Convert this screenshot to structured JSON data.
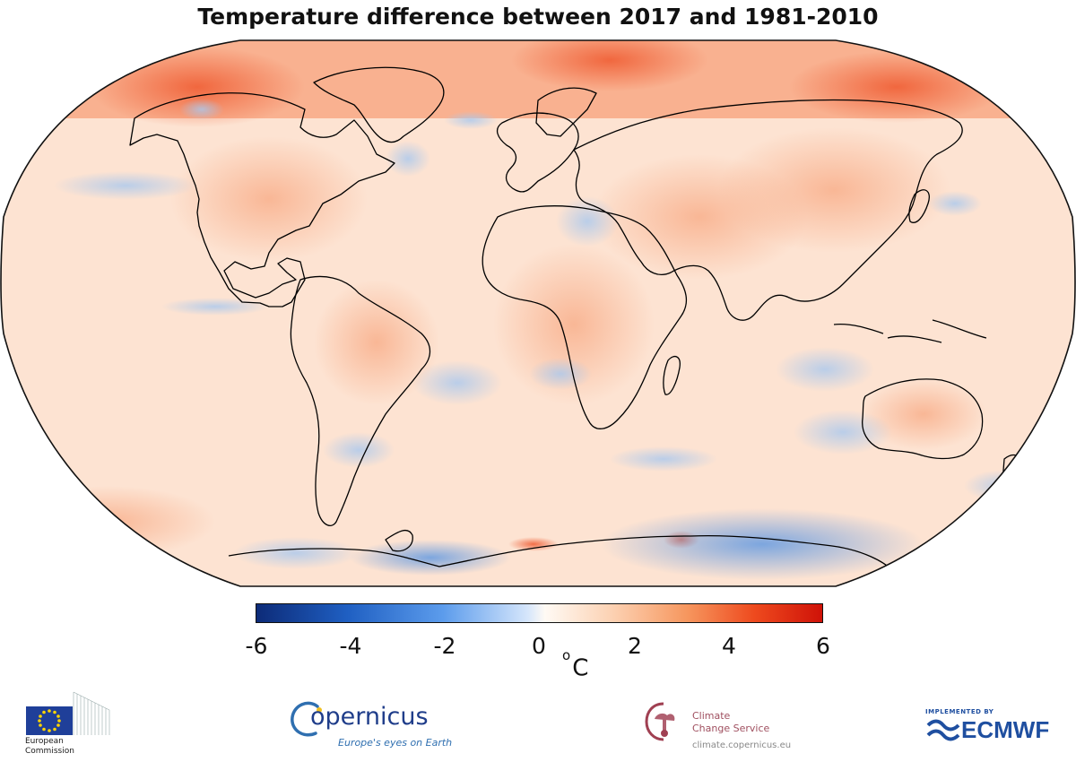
{
  "title": "Temperature difference between 2017 and 1981-2010",
  "colorbar": {
    "ticks": [
      "-6",
      "-4",
      "-2",
      "0",
      "2",
      "4",
      "6"
    ],
    "unit_superscript": "o",
    "unit": "C",
    "range": [
      -6,
      6
    ]
  },
  "logos": {
    "ec": {
      "line1": "European",
      "line2": "Commission"
    },
    "copernicus": {
      "name": "opernicus",
      "tagline": "Europe's eyes on Earth"
    },
    "c3s": {
      "line1": "Climate",
      "line2": "Change Service",
      "url": "climate.copernicus.eu"
    },
    "ecmwf": {
      "implemented": "IMPLEMENTED BY",
      "name": "ECMWF"
    }
  }
}
